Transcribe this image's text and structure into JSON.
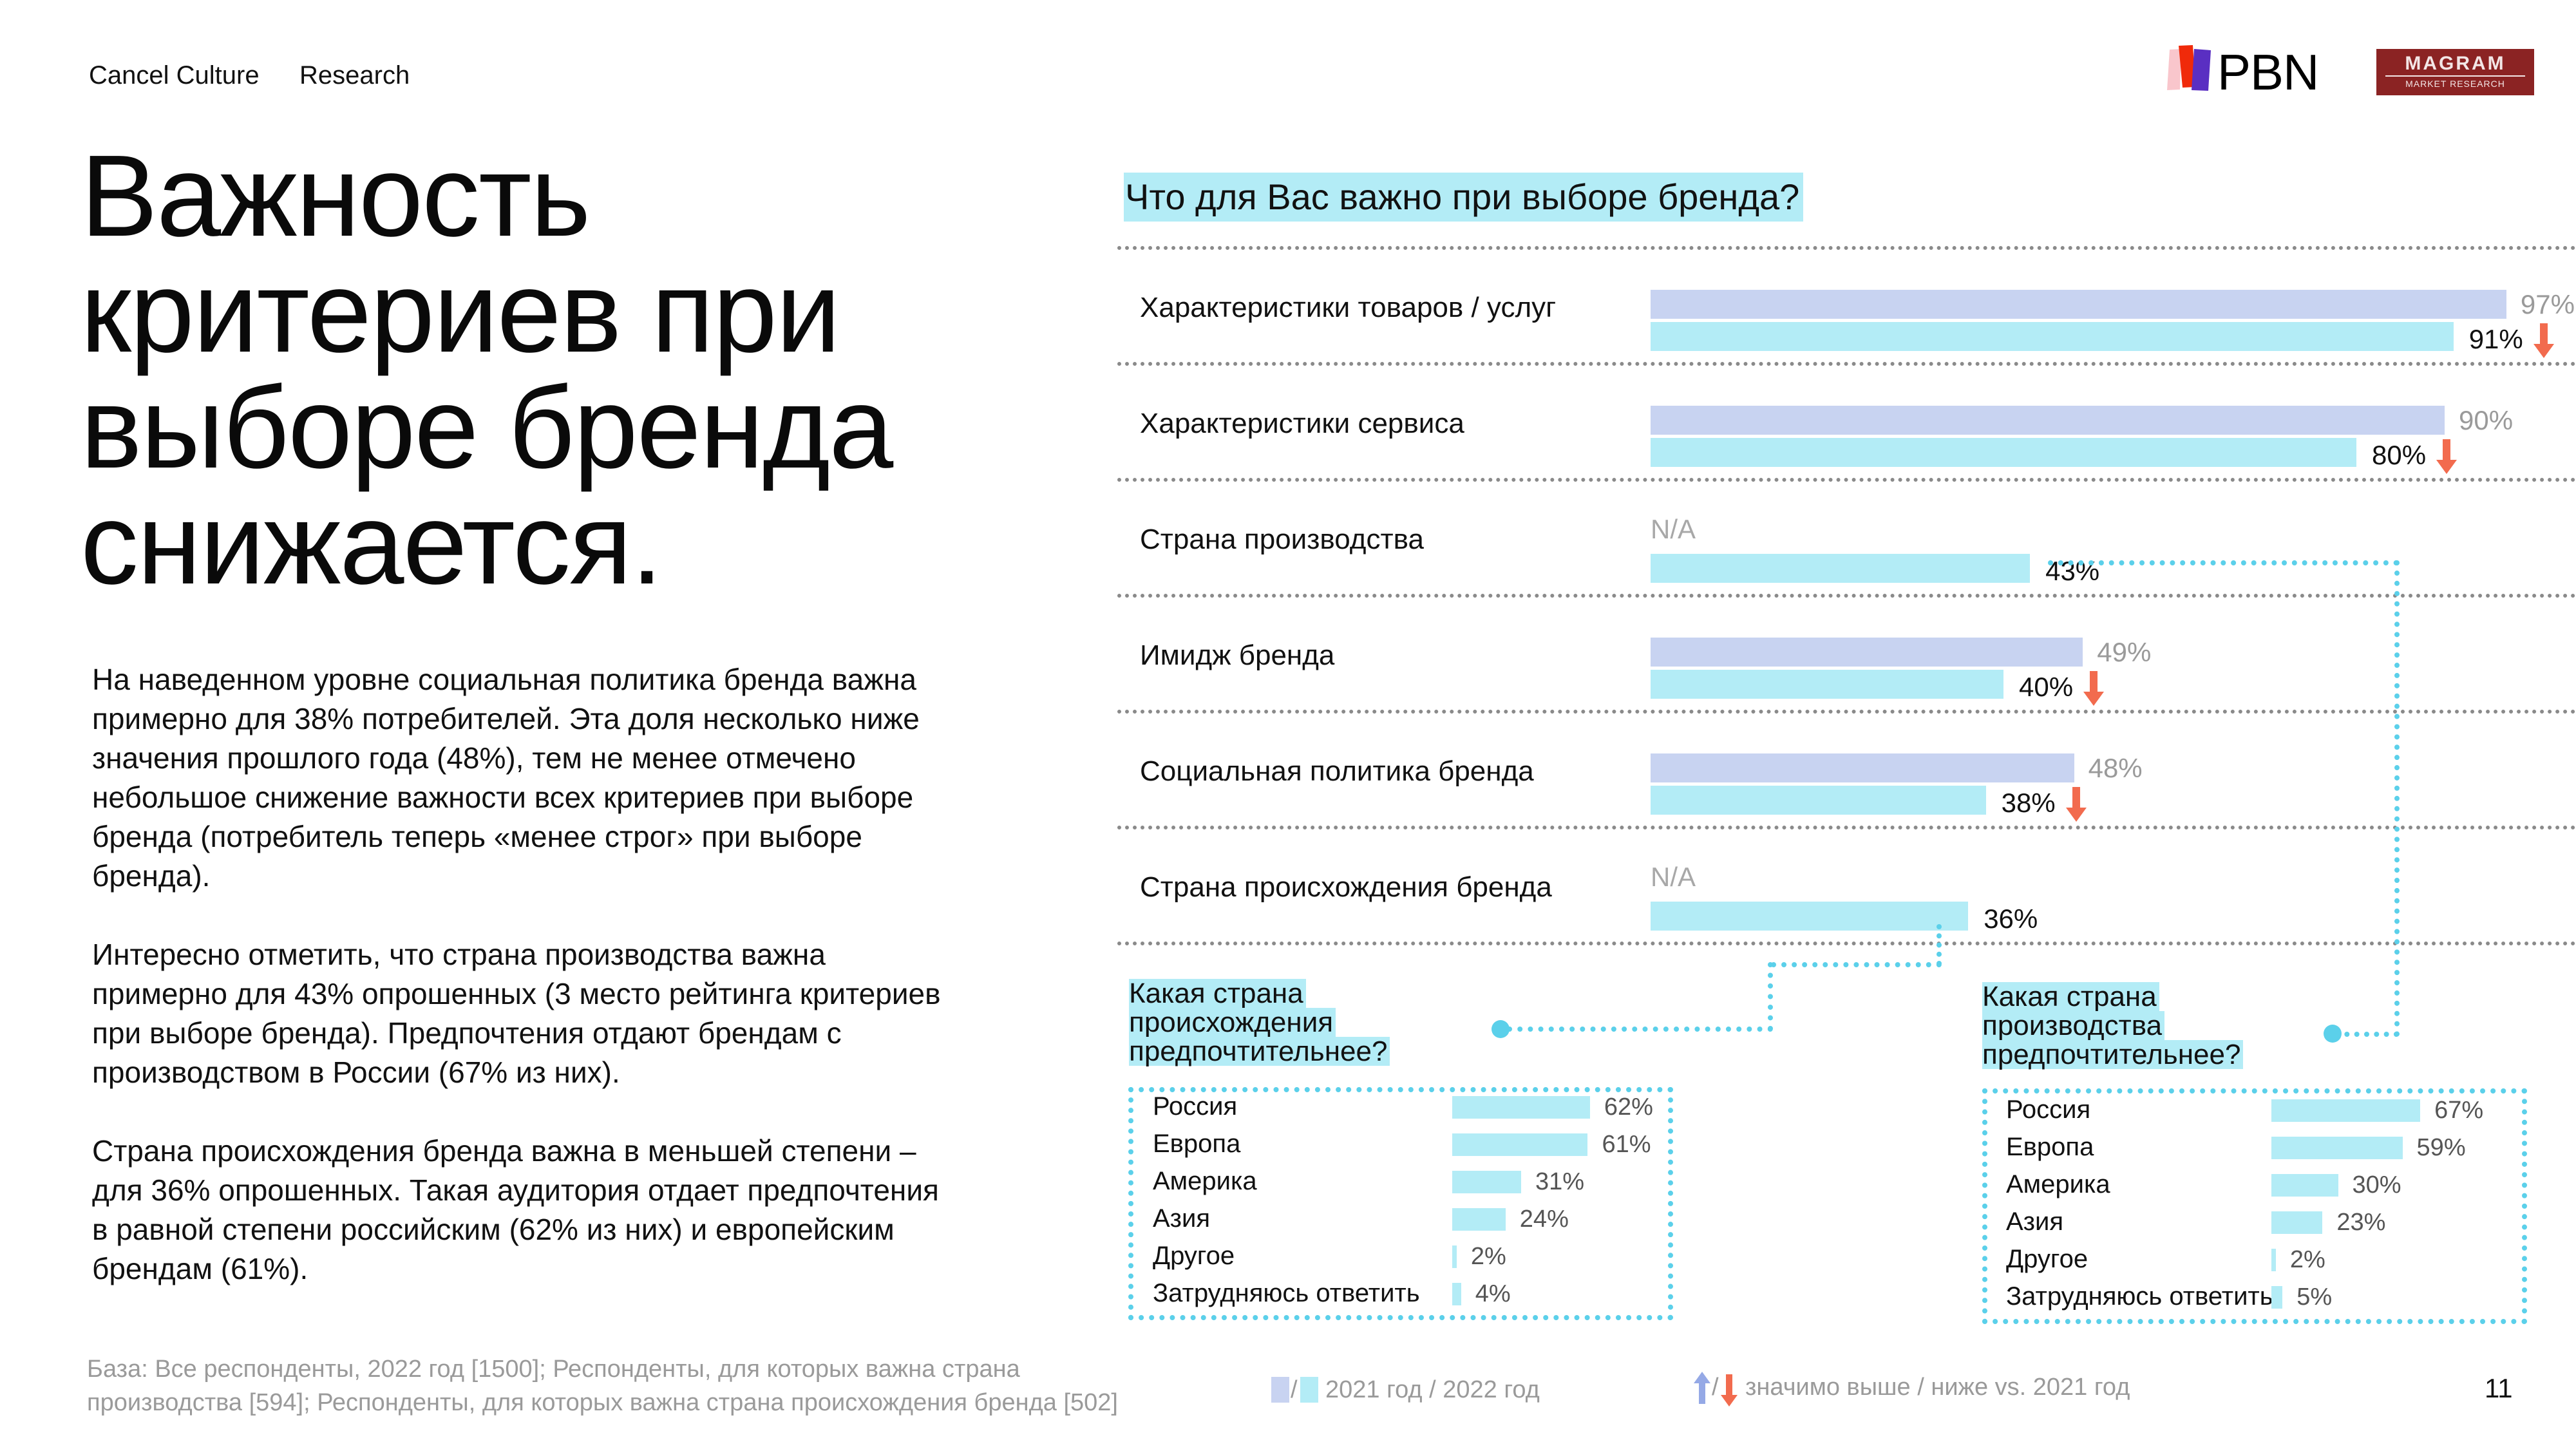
{
  "header": {
    "tag1": "Cancel Culture",
    "tag2": "Research"
  },
  "logos": {
    "pbn": "PBN",
    "magram_main": "MAGRAM",
    "magram_sub": "MARKET RESEARCH"
  },
  "title": {
    "lines": [
      "Важность",
      "критериев при",
      "выборе бренда",
      "снижается."
    ]
  },
  "body": {
    "paragraphs": [
      "На наведенном уровне социальная политика бренда важна примерно для 38% потребителей. Эта доля несколько ниже значения прошлого года (48%), тем не менее отмечено небольшое снижение важности всех критериев при выборе бренда (потребитель теперь «менее строг» при выборе бренда).",
      "Интересно отметить, что страна производства важна примерно для 43% опрошенных (3 место рейтинга критериев при выборе бренда). Предпочтения отдают брендам с производством в России (67% из них).",
      "Страна происхождения бренда важна в меньшей степени – для 36% опрошенных. Такая аудитория отдает предпочтения в равной степени российским (62% из них) и европейским брендам (61%)."
    ]
  },
  "colors": {
    "bar_2021": "#c8d3f1",
    "bar_2022": "#b3ecf6",
    "arrow_down": "#f26b4e",
    "arrow_up": "#95a9e6",
    "connector": "#5bd0ea",
    "magram_bg": "#8b2323"
  },
  "chart_data": [
    {
      "type": "bar",
      "orientation": "horizontal",
      "title": "Что для Вас важно при выборе бренда?",
      "categories": [
        "Характеристики товаров / услуг",
        "Характеристики сервиса",
        "Страна производства",
        "Имидж бренда",
        "Социальная политика бренда",
        "Страна происхождения бренда"
      ],
      "series": [
        {
          "name": "2021 год",
          "values": [
            97,
            90,
            null,
            49,
            48,
            null
          ],
          "labels": [
            "97%",
            "90%",
            "N/A",
            "49%",
            "48%",
            "N/A"
          ]
        },
        {
          "name": "2022 год",
          "values": [
            91,
            80,
            43,
            40,
            38,
            36
          ],
          "labels": [
            "91%",
            "80%",
            "43%",
            "40%",
            "38%",
            "36%"
          ]
        }
      ],
      "significance": [
        "down",
        "down",
        null,
        "down",
        "down",
        null
      ],
      "unit": "%",
      "xlim": [
        0,
        100
      ]
    },
    {
      "type": "bar",
      "orientation": "horizontal",
      "title": "Какая страна происхождения предпочтительнее?",
      "categories": [
        "Россия",
        "Европа",
        "Америка",
        "Азия",
        "Другое",
        "Затрудняюсь ответить"
      ],
      "values": [
        62,
        61,
        31,
        24,
        2,
        4
      ],
      "labels": [
        "62%",
        "61%",
        "31%",
        "24%",
        "2%",
        "4%"
      ],
      "unit": "%",
      "xlim": [
        0,
        100
      ]
    },
    {
      "type": "bar",
      "orientation": "horizontal",
      "title": "Какая страна производства предпочтительнее?",
      "categories": [
        "Россия",
        "Европа",
        "Америка",
        "Азия",
        "Другое",
        "Затрудняюсь ответить"
      ],
      "values": [
        67,
        59,
        30,
        23,
        2,
        5
      ],
      "labels": [
        "67%",
        "59%",
        "30%",
        "23%",
        "2%",
        "5%"
      ],
      "unit": "%",
      "xlim": [
        0,
        100
      ]
    }
  ],
  "sub_titles": {
    "origin": [
      "Какая страна",
      "происхождения",
      "предпочтительнее?"
    ],
    "production": [
      "Какая страна",
      "производства",
      "предпочтительнее?"
    ]
  },
  "footer": {
    "base_line1": "База: Все респонденты, 2022 год [1500]; Респонденты, для которых важна страна",
    "base_line2": "производства [594]; Респонденты, для которых важна страна происхождения бренда [502]",
    "legend_years": "2021 год / 2022 год",
    "legend_sep": "/",
    "legend_sig": "значимо выше / ниже vs. 2021 год",
    "page_number": "11"
  }
}
